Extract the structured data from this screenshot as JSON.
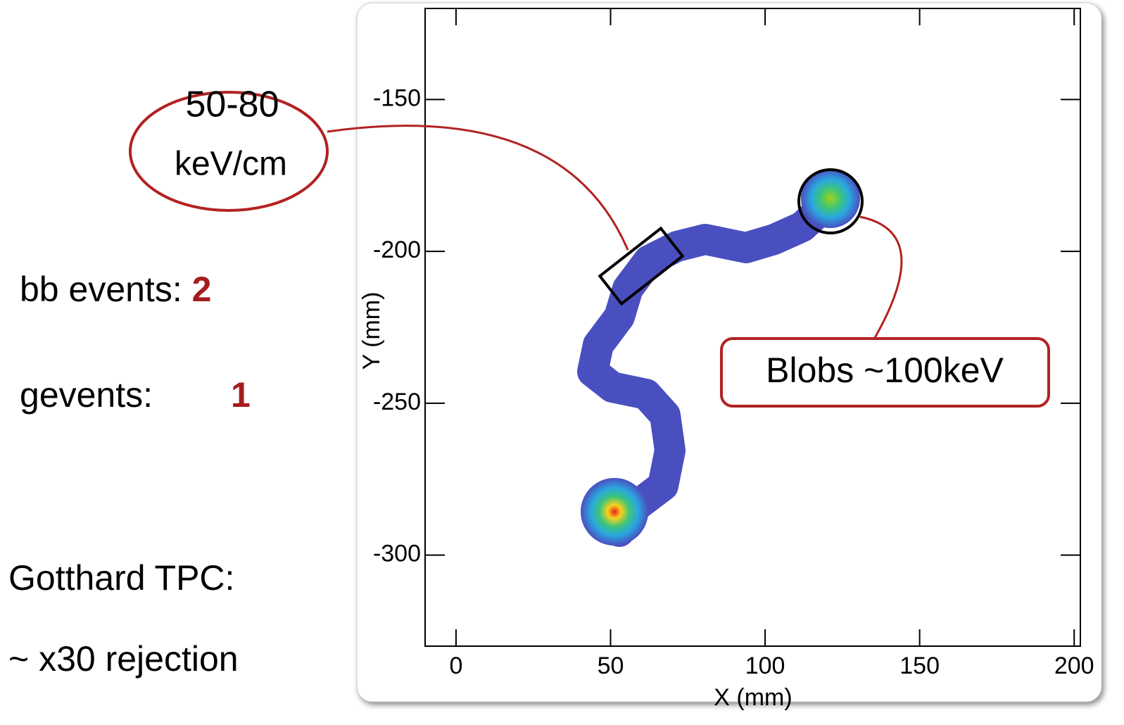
{
  "chart_data": {
    "type": "track",
    "xlabel": "X (mm)",
    "ylabel": "Y (mm)",
    "xlim": [
      -10,
      202
    ],
    "xticks": [
      0,
      50,
      100,
      150,
      200
    ],
    "ylim": [
      -330,
      -120
    ],
    "yticks": [
      -150,
      -200,
      -250,
      -300
    ],
    "annotations": {
      "dedx_value": "50-80",
      "dedx_unit": "keV/cm",
      "blobs": "Blobs ~100keV"
    }
  },
  "sidebar": {
    "bb_label": "bb events:",
    "bb_count": "2",
    "g_label": "g",
    "g_rest": "events:",
    "g_count": "1",
    "detector": "Gotthard TPC:",
    "rejection": "~ x30 rejection"
  }
}
